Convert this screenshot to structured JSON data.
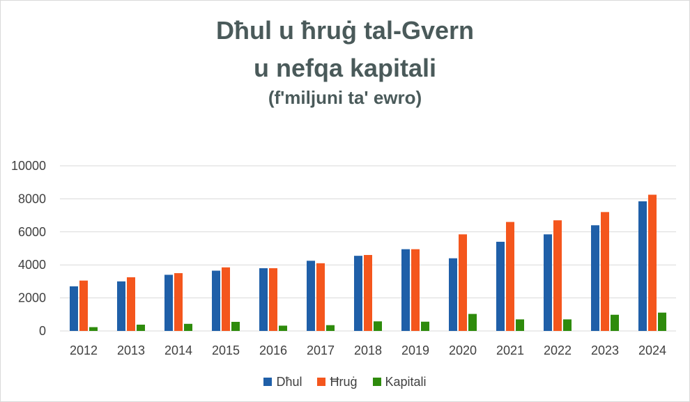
{
  "chart_data": {
    "type": "bar",
    "title": "Dħul u ħruġ tal-Gvern",
    "title_line2": "u nefqa kapitali",
    "subtitle": "(f'miljuni ta' ewro)",
    "categories": [
      "2012",
      "2013",
      "2014",
      "2015",
      "2016",
      "2017",
      "2018",
      "2019",
      "2020",
      "2021",
      "2022",
      "2023",
      "2024"
    ],
    "series": [
      {
        "name": "Dħul",
        "color": "#1f5fa8",
        "values": [
          2700,
          3000,
          3400,
          3650,
          3800,
          4250,
          4550,
          4950,
          4400,
          5400,
          5850,
          6400,
          7850
        ]
      },
      {
        "name": "Ħruġ",
        "color": "#f4561d",
        "values": [
          3050,
          3250,
          3500,
          3850,
          3800,
          4100,
          4600,
          4950,
          5850,
          6600,
          6700,
          7200,
          8250
        ]
      },
      {
        "name": "Kapitali",
        "color": "#2e8b0c",
        "values": [
          230,
          380,
          430,
          550,
          320,
          350,
          580,
          560,
          1030,
          700,
          700,
          980,
          1110
        ]
      }
    ],
    "ylim": [
      0,
      10000
    ],
    "yticks": [
      0,
      2000,
      4000,
      6000,
      8000,
      10000
    ],
    "grid": true,
    "legend": "bottom"
  }
}
